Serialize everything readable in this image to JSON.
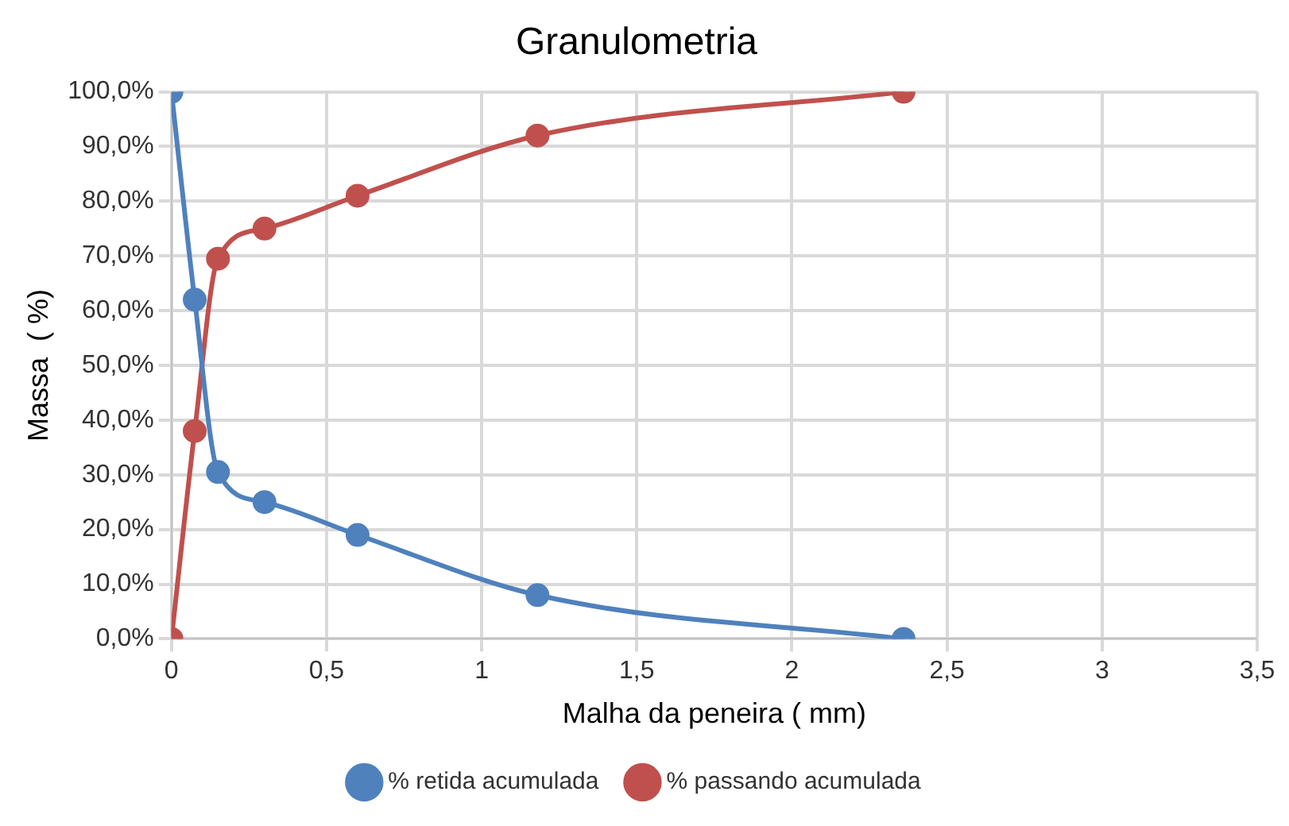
{
  "chart_data": {
    "type": "line",
    "title": "Granulometria",
    "xlabel": "Malha da peneira ( mm)",
    "ylabel": "Massa  ( %)",
    "x": [
      0,
      0.075,
      0.15,
      0.3,
      0.6,
      1.18,
      2.36
    ],
    "series": [
      {
        "name": "% retida acumulada",
        "color": "#4f81bd",
        "values": [
          100,
          62,
          30.5,
          25,
          19,
          8,
          0
        ]
      },
      {
        "name": "% passando acumulada",
        "color": "#c0504d",
        "values": [
          0,
          38,
          69.5,
          75,
          81,
          92,
          100
        ]
      }
    ],
    "xlim": [
      0,
      3.5
    ],
    "xticks": [
      0,
      {
        "value": 0.5,
        "label": "0,5"
      },
      1,
      {
        "value": 1.5,
        "label": "1,5"
      },
      2,
      {
        "value": 2.5,
        "label": "2,5"
      },
      3,
      {
        "value": 3.5,
        "label": "3,5"
      }
    ],
    "ylim": [
      0,
      100
    ],
    "yticks": [
      {
        "value": 0,
        "label": "0,0%"
      },
      {
        "value": 10,
        "label": "10,0%"
      },
      {
        "value": 20,
        "label": "20,0%"
      },
      {
        "value": 30,
        "label": "30,0%"
      },
      {
        "value": 40,
        "label": "40,0%"
      },
      {
        "value": 50,
        "label": "50,0%"
      },
      {
        "value": 60,
        "label": "60,0%"
      },
      {
        "value": 70,
        "label": "70,0%"
      },
      {
        "value": 80,
        "label": "80,0%"
      },
      {
        "value": 90,
        "label": "90,0%"
      },
      {
        "value": 100,
        "label": "100,0%"
      }
    ],
    "grid": true,
    "legend": "bottom",
    "marker": "circle",
    "line_style": "solid"
  }
}
